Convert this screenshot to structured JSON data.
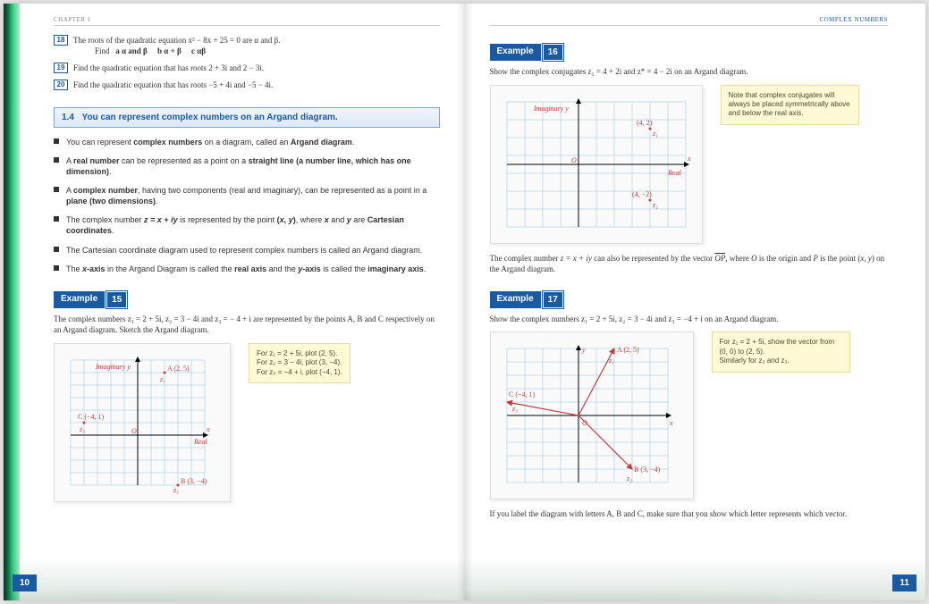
{
  "left": {
    "header": "CHAPTER 1",
    "ex18": {
      "num": "18",
      "line1": "The roots of the quadratic equation x² − 8x + 25 = 0 are α and β.",
      "line2_label": "Find",
      "a": "a  α and β",
      "b": "b  α + β",
      "c": "c  αβ"
    },
    "ex19": {
      "num": "19",
      "text": "Find the quadratic equation that has roots 2 + 3i and 2 − 3i."
    },
    "ex20": {
      "num": "20",
      "text": "Find the quadratic equation that has roots −5 + 4i and −5 − 4i."
    },
    "section": {
      "num": "1.4",
      "text": "You can represent complex numbers on an Argand diagram."
    },
    "bullets": [
      "You can represent <b>complex numbers</b> on a diagram, called an <b>Argand diagram</b>.",
      "A <b>real number</b> can be represented as a point on a <b>straight line (a number line, which has one dimension)</b>.",
      "A <b>complex number</b>, having two components (real and imaginary), can be represented as a point in a <b>plane (two dimensions)</b>.",
      "The complex number <b><i>z = x + iy</i></b> is represented by the point <b>(<i>x</i>, <i>y</i>)</b>, where <b><i>x</i></b> and <b><i>y</i></b> are <b>Cartesian coordinates</b>.",
      "The Cartesian coordinate diagram used to represent complex numbers is called an Argand diagram.",
      "The <b><i>x</i>-axis</b> in the Argand Diagram is called the <b>real axis</b> and the <b><i>y</i>-axis</b> is called the <b>imaginary axis</b>."
    ],
    "example15": {
      "label": "Example",
      "num": "15",
      "text": "The complex numbers z₁ = 2 + 5i, z₂ = 3 − 4i and z₃ = − 4 + i are represented by the points A, B and C respectively on an Argand diagram. Sketch the Argand diagram.",
      "note": "For z₁ = 2 + 5i, plot (2, 5).\nFor z₂ = 3 − 4i, plot (3, −4).\nFor z₃ = −4 + i, plot (−4, 1).",
      "labels": {
        "imag": "Imaginary y",
        "real": "Real",
        "A": "A (2, 5)",
        "B": "B (3, −4)",
        "C": "C (−4, 1)",
        "z1": "z₁",
        "z2": "z₂",
        "z3": "z₃",
        "O": "O",
        "x": "x"
      }
    },
    "page_num": "10"
  },
  "right": {
    "header": "Complex numbers",
    "example16": {
      "label": "Example",
      "num": "16",
      "text": "Show the complex conjugates z₁ = 4 + 2i and z* = 4 − 2i on an Argand diagram.",
      "note": "Note that complex conjugates will always be placed symmetrically above and below the real axis.",
      "labels": {
        "imag": "Imaginary y",
        "real": "Real",
        "p1": "(4, 2)",
        "p2": "(4, −2)",
        "z1": "z₁",
        "z2": "z₂",
        "O": "O",
        "x": "x"
      }
    },
    "mid_text": "The complex number z = x + iy can also be represented by the vector OP, where O is the origin and P is the point (x, y) on the Argand diagram.",
    "example17": {
      "label": "Example",
      "num": "17",
      "text": "Show the complex numbers z₁ = 2 + 5i, z₂ = 3 − 4i and z₃ = −4 + i on an Argand diagram.",
      "note": "For z₁ = 2 + 5i, show the vector from (0, 0) to (2, 5).\nSimilarly for z₂ and z₃.",
      "labels": {
        "y": "y",
        "x": "x",
        "A": "A (2, 5)",
        "B": "B (3, −4)",
        "C": "C (−4, 1)",
        "z1": "z₁",
        "z2": "z₂",
        "z3": "z₃",
        "O": "O"
      }
    },
    "bottom_text": "If you label the diagram with letters A, B and C, make sure that you show which letter represents which vector.",
    "page_num": "11"
  },
  "colors": {
    "primary": "#1a5aa3",
    "accent": "#c73a3a",
    "note_bg": "#fff9d6",
    "grid": "#8fc4e8"
  }
}
